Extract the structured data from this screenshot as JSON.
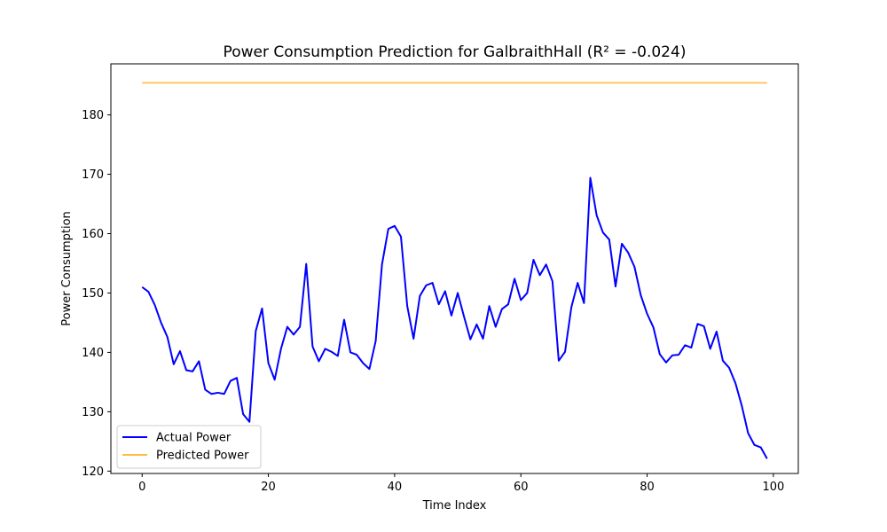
{
  "chart_data": {
    "type": "line",
    "title": "Power Consumption Prediction for GalbraithHall (R² = -0.024)",
    "xlabel": "Time Index",
    "ylabel": "Power Consumption",
    "xlim": [
      -4.95,
      103.95
    ],
    "ylim": [
      119.6,
      188.6
    ],
    "xticks": [
      0,
      20,
      40,
      60,
      80,
      100
    ],
    "yticks": [
      120,
      130,
      140,
      150,
      160,
      170,
      180
    ],
    "grid": false,
    "legend_position": "lower left",
    "series": [
      {
        "name": "Actual Power",
        "color": "#0000ff",
        "x": [
          0,
          1,
          2,
          3,
          4,
          5,
          6,
          7,
          8,
          9,
          10,
          11,
          12,
          13,
          14,
          15,
          16,
          17,
          18,
          19,
          20,
          21,
          22,
          23,
          24,
          25,
          26,
          27,
          28,
          29,
          30,
          31,
          32,
          33,
          34,
          35,
          36,
          37,
          38,
          39,
          40,
          41,
          42,
          43,
          44,
          45,
          46,
          47,
          48,
          49,
          50,
          51,
          52,
          53,
          54,
          55,
          56,
          57,
          58,
          59,
          60,
          61,
          62,
          63,
          64,
          65,
          66,
          67,
          68,
          69,
          70,
          71,
          72,
          73,
          74,
          75,
          76,
          77,
          78,
          79,
          80,
          81,
          82,
          83,
          84,
          85,
          86,
          87,
          88,
          89,
          90,
          91,
          92,
          93,
          94,
          95,
          96,
          97,
          98,
          99
        ],
        "values": [
          151.0,
          150.2,
          148.0,
          145.0,
          142.6,
          138.0,
          140.2,
          137.0,
          136.8,
          138.5,
          133.7,
          133.0,
          133.2,
          133.0,
          135.2,
          135.7,
          129.6,
          128.3,
          143.6,
          147.4,
          138.2,
          135.4,
          140.6,
          144.3,
          143.0,
          144.3,
          154.9,
          141.0,
          138.5,
          140.6,
          140.1,
          139.4,
          145.5,
          140.0,
          139.6,
          138.2,
          137.2,
          141.9,
          154.8,
          160.8,
          161.3,
          159.5,
          147.8,
          142.3,
          149.5,
          151.3,
          151.7,
          148.1,
          150.3,
          146.2,
          150.0,
          146.0,
          142.2,
          144.7,
          142.3,
          147.8,
          144.3,
          147.3,
          148.1,
          152.4,
          148.8,
          150.0,
          155.6,
          153.0,
          154.8,
          152.0,
          138.6,
          140.1,
          147.6,
          151.7,
          148.3,
          169.4,
          163.1,
          160.2,
          159.0,
          151.1,
          158.3,
          156.8,
          154.4,
          149.6,
          146.5,
          144.2,
          139.7,
          138.3,
          139.5,
          139.6,
          141.2,
          140.8,
          144.8,
          144.4,
          140.6,
          143.5,
          138.6,
          137.4,
          134.8,
          131.0,
          126.4,
          124.4,
          124.0,
          122.1
        ]
      },
      {
        "name": "Predicted Power",
        "color": "#ffa500",
        "x": [
          0,
          99
        ],
        "values": [
          185.4,
          185.4
        ]
      }
    ]
  }
}
